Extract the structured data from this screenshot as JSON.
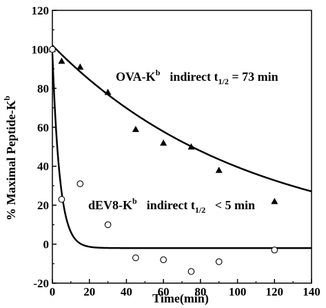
{
  "chart_data": {
    "type": "scatter",
    "xlabel": "Time(min)",
    "ylabel": {
      "main": "% Maximal Peptide-K",
      "sup": "b"
    },
    "xlim": [
      0,
      140
    ],
    "ylim": [
      -20,
      120
    ],
    "xticks": [
      "0",
      "20",
      "40",
      "60",
      "80",
      "100",
      "120",
      "140"
    ],
    "yticks": [
      "-20",
      "0",
      "20",
      "40",
      "60",
      "80",
      "100",
      "120"
    ],
    "grid": false,
    "series": [
      {
        "marker": "triangle",
        "x": [
          0,
          5,
          15,
          30,
          45,
          60,
          75,
          90,
          120
        ],
        "y": [
          100,
          94,
          91,
          78,
          59,
          52,
          50,
          38,
          22
        ],
        "fit": {
          "kind": "exp_decay",
          "a": 102,
          "b": 0.009467,
          "c": 0,
          "xmax": 140
        }
      },
      {
        "marker": "open-circle",
        "x": [
          0,
          5,
          15,
          30,
          45,
          60,
          75,
          90,
          120
        ],
        "y": [
          100,
          23,
          31,
          10,
          -7,
          -8,
          -14,
          -9,
          -3
        ],
        "fit": {
          "kind": "exp_decay",
          "a": 100,
          "b": 0.25,
          "c": -2,
          "xmax": 140
        }
      }
    ],
    "annotations": [
      {
        "name": "OVA-K",
        "sup": "b",
        "text": "indirect t",
        "sub": "1/2",
        "value": " = 73 min"
      },
      {
        "name": "dEV8-K",
        "sup": "b",
        "text": "indirect t",
        "sub": "1/2",
        "value": "   < 5 min"
      }
    ]
  }
}
